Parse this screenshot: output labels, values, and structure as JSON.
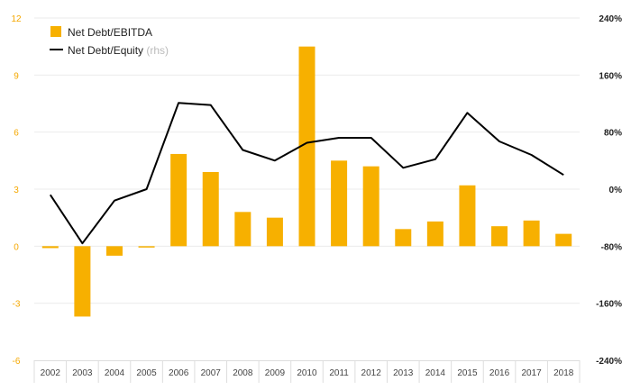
{
  "chart_data": {
    "type": "bar",
    "categories": [
      "2002",
      "2003",
      "2004",
      "2005",
      "2006",
      "2007",
      "2008",
      "2009",
      "2010",
      "2011",
      "2012",
      "2013",
      "2014",
      "2015",
      "2016",
      "2017",
      "2018"
    ],
    "series": [
      {
        "name": "Net Debt/EBITDA",
        "type": "bar",
        "axis": "left",
        "color": "#f7b000",
        "values": [
          -0.1,
          -3.7,
          -0.5,
          -0.05,
          4.85,
          3.9,
          1.8,
          1.5,
          10.5,
          4.5,
          4.2,
          0.9,
          1.3,
          3.2,
          1.05,
          1.35,
          0.65
        ]
      },
      {
        "name": "Net Debt/Equity",
        "name_suffix": "(rhs)",
        "type": "line",
        "axis": "right",
        "color": "#000000",
        "values": [
          -8,
          -76,
          -16,
          0,
          121,
          118,
          55,
          40,
          65,
          72,
          72,
          30,
          42,
          107,
          67,
          48,
          20
        ]
      }
    ],
    "left_axis": {
      "ylim": [
        -6,
        12
      ],
      "ticks": [
        "-6",
        "-3",
        "0",
        "3",
        "6",
        "9",
        "12"
      ],
      "tick_values": [
        -6,
        -3,
        0,
        3,
        6,
        9,
        12
      ]
    },
    "right_axis": {
      "ylim": [
        -240,
        240
      ],
      "ticks": [
        "-240%",
        "-160%",
        "-80%",
        "0%",
        "80%",
        "160%",
        "240%"
      ],
      "tick_values": [
        -240,
        -160,
        -80,
        0,
        80,
        160,
        240
      ]
    },
    "grid": true,
    "legend_position": "top-left",
    "title": "",
    "xlabel": "",
    "ylabel": ""
  }
}
